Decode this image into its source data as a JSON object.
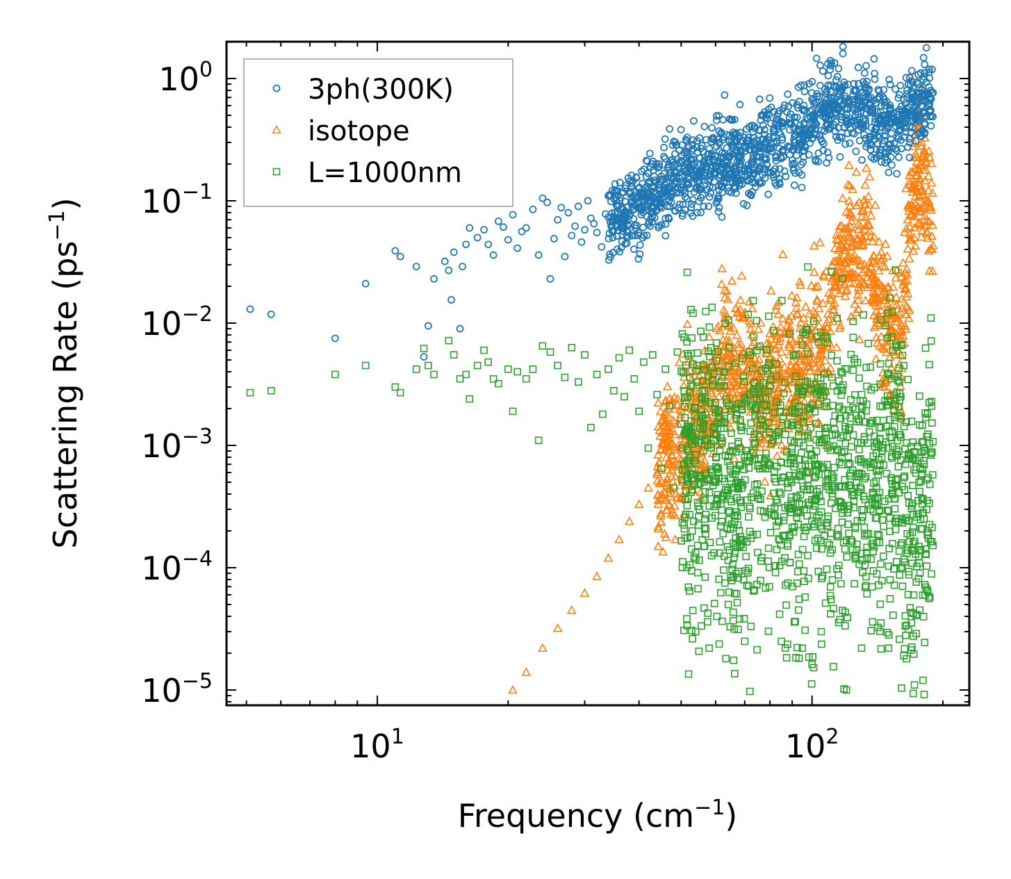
{
  "chart_data": {
    "type": "scatter",
    "xscale": "log",
    "yscale": "log",
    "xlabel": "Frequency (cm",
    "xlabel_sup": "−1",
    "xlabel_end": ")",
    "ylabel": "Scattering Rate (ps",
    "ylabel_sup": "−1",
    "ylabel_end": ")",
    "xlim": [
      4.5,
      230
    ],
    "ylim": [
      7.5e-06,
      2.0
    ],
    "x_ticks": [
      {
        "value": 10,
        "base": "10",
        "exp": "1"
      },
      {
        "value": 100,
        "base": "10",
        "exp": "2"
      }
    ],
    "y_ticks": [
      {
        "value": 1,
        "base": "10",
        "exp": "0"
      },
      {
        "value": 0.1,
        "base": "10",
        "exp": "−1"
      },
      {
        "value": 0.01,
        "base": "10",
        "exp": "−2"
      },
      {
        "value": 0.001,
        "base": "10",
        "exp": "−3"
      },
      {
        "value": 0.0001,
        "base": "10",
        "exp": "−4"
      },
      {
        "value": 1e-05,
        "base": "10",
        "exp": "−5"
      }
    ],
    "legend_position": "top-left",
    "series": [
      {
        "name": "3ph(300K)",
        "marker": "circle",
        "color": "#1f77b4",
        "points": [
          [
            5.1,
            0.013
          ],
          [
            5.7,
            0.0118
          ],
          [
            8.0,
            0.0075
          ],
          [
            9.4,
            0.021
          ],
          [
            11.0,
            0.039
          ],
          [
            11.3,
            0.035
          ],
          [
            12.3,
            0.029
          ],
          [
            12.8,
            0.0053
          ],
          [
            13.1,
            0.0095
          ],
          [
            13.5,
            0.023
          ],
          [
            14.3,
            0.032
          ],
          [
            14.6,
            0.027
          ],
          [
            14.8,
            0.0155
          ],
          [
            15.0,
            0.038
          ],
          [
            15.5,
            0.009
          ],
          [
            15.7,
            0.029
          ],
          [
            16.0,
            0.044
          ],
          [
            16.3,
            0.06
          ],
          [
            17.0,
            0.05
          ],
          [
            17.6,
            0.058
          ],
          [
            18.0,
            0.044
          ],
          [
            18.5,
            0.036
          ],
          [
            19.0,
            0.068
          ],
          [
            19.5,
            0.061
          ],
          [
            20.0,
            0.048
          ],
          [
            20.5,
            0.077
          ],
          [
            21.0,
            0.041
          ],
          [
            21.5,
            0.056
          ],
          [
            22.0,
            0.06
          ],
          [
            22.8,
            0.085
          ],
          [
            23.5,
            0.036
          ],
          [
            24.0,
            0.105
          ],
          [
            24.6,
            0.097
          ],
          [
            25.0,
            0.023
          ],
          [
            25.5,
            0.049
          ],
          [
            26.0,
            0.07
          ],
          [
            26.5,
            0.088
          ],
          [
            27.0,
            0.035
          ],
          [
            27.5,
            0.08
          ],
          [
            28.0,
            0.052
          ],
          [
            28.5,
            0.062
          ],
          [
            29.0,
            0.09
          ],
          [
            29.5,
            0.046
          ],
          [
            30.0,
            0.058
          ],
          [
            30.5,
            0.1
          ],
          [
            31.0,
            0.072
          ],
          [
            31.5,
            0.065
          ],
          [
            32.0,
            0.055
          ],
          [
            32.8,
            0.042
          ],
          [
            33.5,
            0.078
          ],
          [
            34.0,
            0.11
          ],
          [
            34.8,
            0.05
          ],
          [
            35.5,
            0.092
          ],
          [
            36.0,
            0.07
          ],
          [
            36.8,
            0.085
          ],
          [
            37.5,
            0.045
          ],
          [
            38.0,
            0.075
          ],
          [
            38.8,
            0.11
          ],
          [
            39.5,
            0.063
          ]
        ],
        "trend": [
          [
            34,
            0.075
          ],
          [
            40,
            0.085
          ],
          [
            45,
            0.12
          ],
          [
            50,
            0.18
          ],
          [
            55,
            0.16
          ],
          [
            60,
            0.2
          ],
          [
            66,
            0.24
          ],
          [
            72,
            0.22
          ],
          [
            80,
            0.28
          ],
          [
            90,
            0.32
          ],
          [
            100,
            0.45
          ],
          [
            110,
            0.6
          ],
          [
            125,
            0.55
          ],
          [
            140,
            0.48
          ],
          [
            150,
            0.38
          ],
          [
            160,
            0.45
          ],
          [
            175,
            0.65
          ],
          [
            190,
            0.75
          ]
        ],
        "spread": 0.5
      },
      {
        "name": "isotope",
        "marker": "triangle",
        "color": "#ff7f0e",
        "points": [
          [
            20.5,
            1e-05
          ],
          [
            22.0,
            1.4e-05
          ],
          [
            24.0,
            2.2e-05
          ],
          [
            26.0,
            3.2e-05
          ],
          [
            28.0,
            4.5e-05
          ],
          [
            30.0,
            6.2e-05
          ],
          [
            32.0,
            8.5e-05
          ],
          [
            34.0,
            0.00012
          ],
          [
            36.0,
            0.00017
          ],
          [
            38.0,
            0.00024
          ],
          [
            40.0,
            0.00033
          ],
          [
            42.0,
            0.00045
          ],
          [
            44.0,
            0.00058
          ]
        ],
        "trend": [
          [
            44,
            0.00058
          ],
          [
            50,
            0.00095
          ],
          [
            55,
            0.0014
          ],
          [
            60,
            0.0022
          ],
          [
            63,
            0.006
          ],
          [
            66,
            0.003
          ],
          [
            70,
            0.004
          ],
          [
            75,
            0.0025
          ],
          [
            80,
            0.003
          ],
          [
            90,
            0.0035
          ],
          [
            100,
            0.0045
          ],
          [
            110,
            0.008
          ],
          [
            118,
            0.05
          ],
          [
            125,
            0.03
          ],
          [
            135,
            0.04
          ],
          [
            145,
            0.01
          ],
          [
            160,
            0.006
          ],
          [
            172,
            0.2
          ],
          [
            180,
            0.15
          ],
          [
            190,
            0.06
          ]
        ],
        "spread": 0.8
      },
      {
        "name": "L=1000nm",
        "marker": "square",
        "color": "#2ca02c",
        "points": [
          [
            5.1,
            0.0027
          ],
          [
            5.7,
            0.0028
          ],
          [
            8.0,
            0.0038
          ],
          [
            9.4,
            0.0045
          ],
          [
            11.0,
            0.003
          ],
          [
            11.3,
            0.0027
          ],
          [
            12.3,
            0.0042
          ],
          [
            12.8,
            0.0062
          ],
          [
            13.1,
            0.0045
          ],
          [
            13.5,
            0.0038
          ],
          [
            14.6,
            0.0072
          ],
          [
            15.0,
            0.0055
          ],
          [
            15.5,
            0.0035
          ],
          [
            16.0,
            0.0038
          ],
          [
            16.3,
            0.0024
          ],
          [
            17.0,
            0.0045
          ],
          [
            17.6,
            0.006
          ],
          [
            18.0,
            0.0048
          ],
          [
            18.5,
            0.0035
          ],
          [
            19.0,
            0.0032
          ],
          [
            20.0,
            0.0042
          ],
          [
            20.5,
            0.0019
          ],
          [
            21.0,
            0.004
          ],
          [
            22.0,
            0.0035
          ],
          [
            22.8,
            0.0042
          ],
          [
            23.5,
            0.0011
          ],
          [
            24.0,
            0.0065
          ],
          [
            25.0,
            0.0058
          ],
          [
            26.0,
            0.0045
          ],
          [
            27.0,
            0.0036
          ],
          [
            28.0,
            0.0063
          ],
          [
            29.0,
            0.0033
          ],
          [
            30.0,
            0.0055
          ],
          [
            31.0,
            0.0014
          ],
          [
            32.0,
            0.0038
          ],
          [
            33.0,
            0.0018
          ],
          [
            34.0,
            0.0042
          ],
          [
            35.0,
            0.0028
          ],
          [
            36.0,
            0.0052
          ],
          [
            37.0,
            0.0025
          ],
          [
            38.0,
            0.006
          ],
          [
            39.0,
            0.0035
          ],
          [
            40.0,
            0.0019
          ],
          [
            41.0,
            0.0048
          ],
          [
            42.0,
            0.00095
          ],
          [
            43.0,
            0.0055
          ],
          [
            44.0,
            0.0026
          ],
          [
            45.0,
            0.00065
          ],
          [
            46.0,
            0.0042
          ],
          [
            47.0,
            0.0021
          ],
          [
            48.0,
            0.00045
          ],
          [
            49.0,
            0.0058
          ],
          [
            50.0,
            0.0015
          ],
          [
            52.0,
            1.35e-05
          ],
          [
            54.0,
            3e-05
          ],
          [
            58.0,
            2.2e-05
          ],
          [
            66.0,
            1.75e-05
          ],
          [
            70.0,
            2.5e-05
          ],
          [
            85.0,
            2.5e-05
          ],
          [
            95.0,
            2.2e-05
          ],
          [
            105.0,
            3e-05
          ],
          [
            112.0,
            1.55e-05
          ],
          [
            120.0,
            1e-05
          ],
          [
            130.0,
            2.2e-05
          ],
          [
            150.0,
            2.2e-05
          ],
          [
            165.0,
            1.8e-05
          ],
          [
            172.0,
            1.1e-05
          ],
          [
            180.0,
            1.2e-05
          ]
        ],
        "trend": [
          [
            50,
            0.0012
          ],
          [
            55,
            0.0009
          ],
          [
            60,
            0.0011
          ],
          [
            66,
            0.0003
          ],
          [
            70,
            0.0008
          ],
          [
            78,
            0.001
          ],
          [
            85,
            0.0005
          ],
          [
            95,
            0.0008
          ],
          [
            105,
            0.0011
          ],
          [
            115,
            0.0006
          ],
          [
            125,
            0.0009
          ],
          [
            140,
            0.0005
          ],
          [
            155,
            0.0012
          ],
          [
            165,
            0.0004
          ],
          [
            172,
            0.0002
          ],
          [
            182,
            0.0005
          ],
          [
            190,
            0.0006
          ]
        ],
        "spread": 1.6
      }
    ]
  }
}
